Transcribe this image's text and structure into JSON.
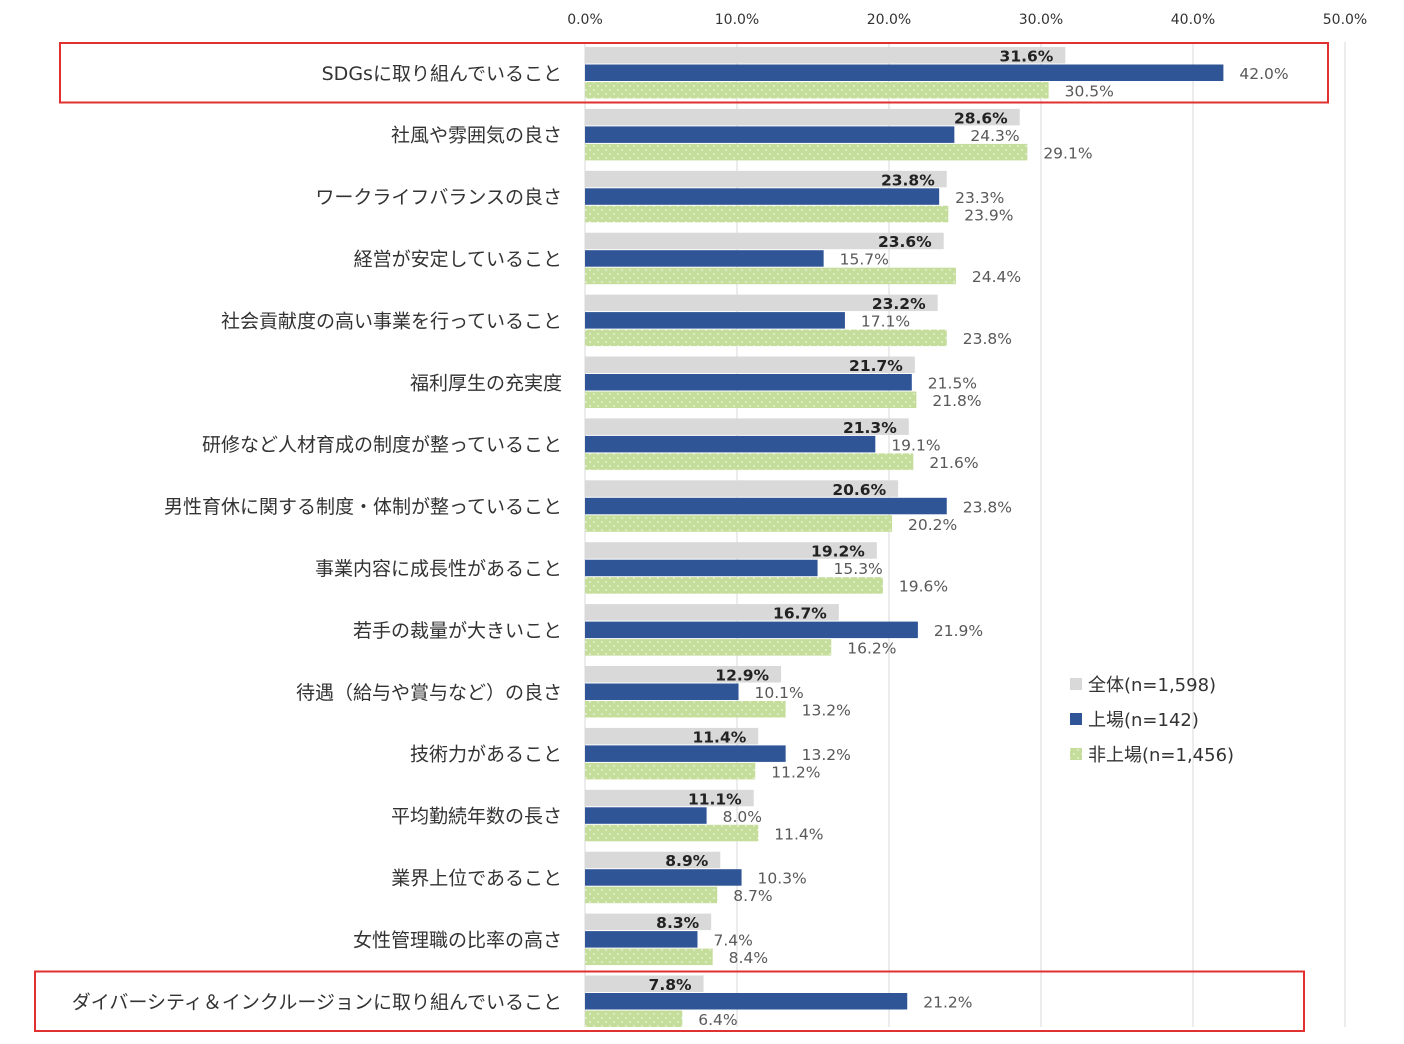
{
  "chart_data": {
    "type": "bar",
    "orientation": "horizontal",
    "xlim": [
      0,
      50
    ],
    "ticks": [
      "0.0%",
      "10.0%",
      "20.0%",
      "30.0%",
      "40.0%",
      "50.0%"
    ],
    "categories": [
      "SDGsに取り組んでいること",
      "社風や雰囲気の良さ",
      "ワークライフバランスの良さ",
      "経営が安定していること",
      "社会貢献度の高い事業を行っていること",
      "福利厚生の充実度",
      "研修など人材育成の制度が整っていること",
      "男性育休に関する制度・体制が整っていること",
      "事業内容に成長性があること",
      "若手の裁量が大きいこと",
      "待遇（給与や賞与など）の良さ",
      "技術力があること",
      "平均勤続年数の長さ",
      "業界上位であること",
      "女性管理職の比率の高さ",
      "ダイバーシティ＆インクルージョンに取り組んでいること"
    ],
    "series": [
      {
        "name": "全体(n=1,598)",
        "color": "#d9d9d9",
        "values": [
          31.6,
          28.6,
          23.8,
          23.6,
          23.2,
          21.7,
          21.3,
          20.6,
          19.2,
          16.7,
          12.9,
          11.4,
          11.1,
          8.9,
          8.3,
          7.8
        ],
        "labels": [
          "31.6%",
          "28.6%",
          "23.8%",
          "23.6%",
          "23.2%",
          "21.7%",
          "21.3%",
          "20.6%",
          "19.2%",
          "16.7%",
          "12.9%",
          "11.4%",
          "11.1%",
          "8.9%",
          "8.3%",
          "7.8%"
        ]
      },
      {
        "name": "上場(n=142)",
        "color": "#2f5597",
        "values": [
          42.0,
          24.3,
          23.3,
          15.7,
          17.1,
          21.5,
          19.1,
          23.8,
          15.3,
          21.9,
          10.1,
          13.2,
          8.0,
          10.3,
          7.4,
          21.2
        ],
        "labels": [
          "42.0%",
          "24.3%",
          "23.3%",
          "15.7%",
          "17.1%",
          "21.5%",
          "19.1%",
          "23.8%",
          "15.3%",
          "21.9%",
          "10.1%",
          "13.2%",
          "8.0%",
          "10.3%",
          "7.4%",
          "21.2%"
        ]
      },
      {
        "name": "非上場(n=1,456)",
        "color": "#c5dd9a",
        "values": [
          30.5,
          29.1,
          23.9,
          24.4,
          23.8,
          21.8,
          21.6,
          20.2,
          19.6,
          16.2,
          13.2,
          11.2,
          11.4,
          8.7,
          8.4,
          6.4
        ],
        "labels": [
          "30.5%",
          "29.1%",
          "23.9%",
          "24.4%",
          "23.8%",
          "21.8%",
          "21.6%",
          "20.2%",
          "19.6%",
          "16.2%",
          "13.2%",
          "11.2%",
          "11.4%",
          "8.7%",
          "8.4%",
          "6.4%"
        ]
      }
    ],
    "highlighted_categories": [
      0,
      15
    ],
    "highlight_color": "#e03030",
    "legend_position": "right"
  }
}
